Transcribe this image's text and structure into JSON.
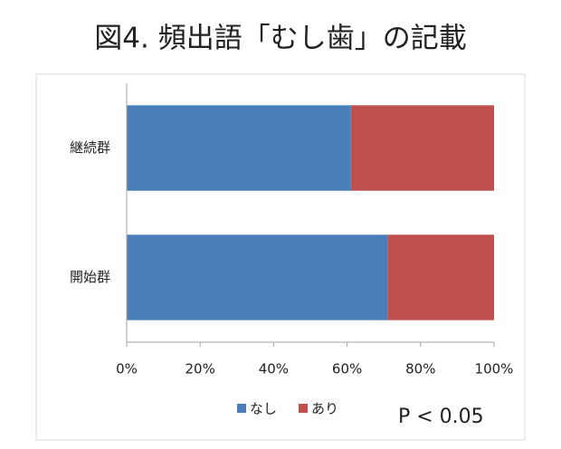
{
  "chart_data": {
    "type": "stacked-barh",
    "title": "図4. 頻出語「むし歯」の記載",
    "categories": [
      "継続群",
      "開始群"
    ],
    "series": [
      {
        "name": "なし",
        "color": "#4a7ebb",
        "values": [
          61,
          71
        ]
      },
      {
        "name": "あり",
        "color": "#c0504d",
        "values": [
          39,
          29
        ]
      }
    ],
    "xlim": [
      0,
      100
    ],
    "xticks": [
      {
        "value": 0,
        "label": "0%"
      },
      {
        "value": 20,
        "label": "20%"
      },
      {
        "value": 40,
        "label": "40%"
      },
      {
        "value": 60,
        "label": "60%"
      },
      {
        "value": 80,
        "label": "80%"
      },
      {
        "value": 100,
        "label": "100%"
      }
    ],
    "legend": "bottom",
    "annotation": "P < 0.05"
  }
}
